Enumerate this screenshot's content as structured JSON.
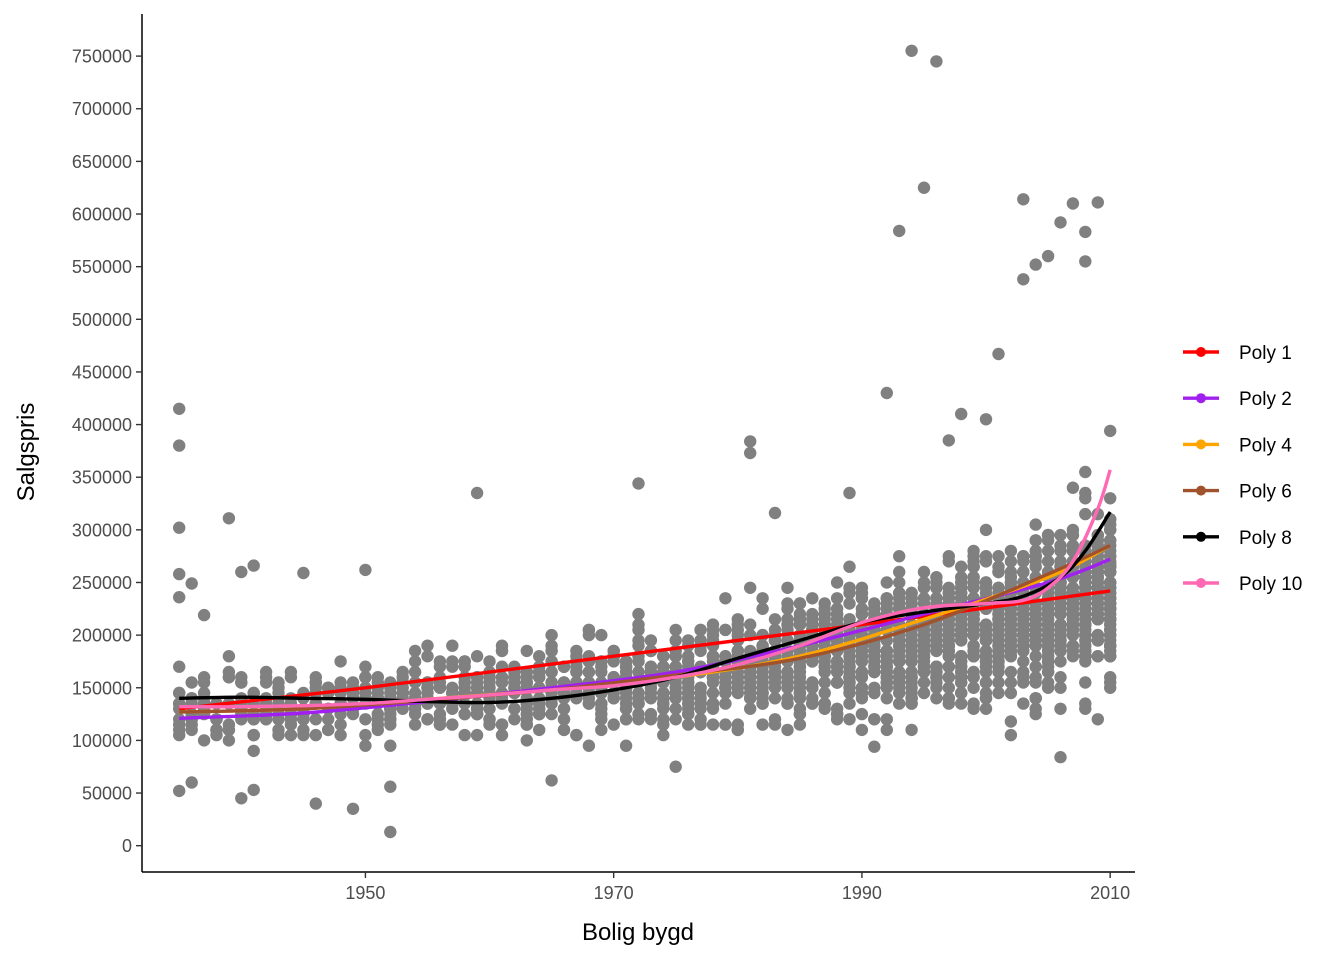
{
  "chart_data": {
    "type": "scatter",
    "title": "",
    "xlabel": "Bolig bygd",
    "ylabel": "Salgspris",
    "xlim": [
      1932,
      2012
    ],
    "ylim": [
      -25000,
      790000
    ],
    "x_ticks": [
      1950,
      1970,
      1990,
      2010
    ],
    "y_ticks": [
      0,
      50000,
      100000,
      150000,
      200000,
      250000,
      300000,
      350000,
      400000,
      450000,
      500000,
      550000,
      600000,
      650000,
      700000,
      750000
    ],
    "grid": false,
    "legend_position": "right",
    "point_color": "#808080",
    "scatter_style": {
      "x_range": [
        1935,
        2010
      ],
      "density_increases_toward": 2010,
      "typical_band_low": 70000,
      "typical_band_high": 350000
    },
    "points_notable": [
      {
        "x": 1935,
        "y": 415000
      },
      {
        "x": 1935,
        "y": 380000
      },
      {
        "x": 1935,
        "y": 302000
      },
      {
        "x": 1935,
        "y": 258000
      },
      {
        "x": 1935,
        "y": 236000
      },
      {
        "x": 1935,
        "y": 52000
      },
      {
        "x": 1936,
        "y": 249000
      },
      {
        "x": 1936,
        "y": 60000
      },
      {
        "x": 1937,
        "y": 219000
      },
      {
        "x": 1939,
        "y": 311000
      },
      {
        "x": 1940,
        "y": 260000
      },
      {
        "x": 1941,
        "y": 266000
      },
      {
        "x": 1940,
        "y": 45000
      },
      {
        "x": 1941,
        "y": 53000
      },
      {
        "x": 1945,
        "y": 259000
      },
      {
        "x": 1946,
        "y": 40000
      },
      {
        "x": 1949,
        "y": 35000
      },
      {
        "x": 1950,
        "y": 262000
      },
      {
        "x": 1952,
        "y": 13000
      },
      {
        "x": 1952,
        "y": 56000
      },
      {
        "x": 1959,
        "y": 335000
      },
      {
        "x": 1965,
        "y": 62000
      },
      {
        "x": 1972,
        "y": 344000
      },
      {
        "x": 1975,
        "y": 75000
      },
      {
        "x": 1981,
        "y": 384000
      },
      {
        "x": 1981,
        "y": 373000
      },
      {
        "x": 1983,
        "y": 316000
      },
      {
        "x": 1989,
        "y": 335000
      },
      {
        "x": 1991,
        "y": 94000
      },
      {
        "x": 1992,
        "y": 430000
      },
      {
        "x": 1993,
        "y": 584000
      },
      {
        "x": 1994,
        "y": 755000
      },
      {
        "x": 1995,
        "y": 625000
      },
      {
        "x": 1996,
        "y": 745000
      },
      {
        "x": 1997,
        "y": 385000
      },
      {
        "x": 1998,
        "y": 410000
      },
      {
        "x": 2000,
        "y": 405000
      },
      {
        "x": 2001,
        "y": 467000
      },
      {
        "x": 2002,
        "y": 118000
      },
      {
        "x": 2003,
        "y": 614000
      },
      {
        "x": 2003,
        "y": 538000
      },
      {
        "x": 2004,
        "y": 552000
      },
      {
        "x": 2005,
        "y": 560000
      },
      {
        "x": 2006,
        "y": 592000
      },
      {
        "x": 2006,
        "y": 84000
      },
      {
        "x": 2007,
        "y": 610000
      },
      {
        "x": 2008,
        "y": 583000
      },
      {
        "x": 2008,
        "y": 555000
      },
      {
        "x": 2009,
        "y": 611000
      },
      {
        "x": 2010,
        "y": 394000
      },
      {
        "x": 2010,
        "y": 268000
      }
    ],
    "series": [
      {
        "name": "Poly 1",
        "color": "#FF0000",
        "x": [
          1935,
          1950,
          1970,
          1990,
          2010
        ],
        "values": [
          130000,
          150000,
          180000,
          210000,
          242000
        ]
      },
      {
        "name": "Poly 2",
        "color": "#A020F0",
        "x": [
          1935,
          1945,
          1955,
          1965,
          1975,
          1985,
          1995,
          2005,
          2010
        ],
        "values": [
          121000,
          126000,
          137000,
          150000,
          165000,
          190000,
          220000,
          250000,
          272000
        ]
      },
      {
        "name": "Poly 4",
        "color": "#FFA500",
        "x": [
          1935,
          1945,
          1955,
          1965,
          1975,
          1985,
          1995,
          2005,
          2010
        ],
        "values": [
          127000,
          130000,
          139000,
          148000,
          160000,
          180000,
          215000,
          255000,
          285000
        ]
      },
      {
        "name": "Poly 6",
        "color": "#A0522D",
        "x": [
          1935,
          1945,
          1955,
          1965,
          1975,
          1985,
          1995,
          2005,
          2010
        ],
        "values": [
          127000,
          130000,
          138000,
          148000,
          162000,
          178000,
          210000,
          258000,
          285000
        ]
      },
      {
        "name": "Poly 8",
        "color": "#000000",
        "x": [
          1935,
          1940,
          1945,
          1950,
          1955,
          1960,
          1965,
          1970,
          1975,
          1980,
          1985,
          1990,
          1995,
          2000,
          2003,
          2006,
          2008,
          2010
        ],
        "values": [
          140000,
          141000,
          140000,
          139000,
          137000,
          136000,
          140000,
          148000,
          160000,
          178000,
          195000,
          212000,
          222000,
          230000,
          237000,
          255000,
          280000,
          317000
        ]
      },
      {
        "name": "Poly 10",
        "color": "#FF69B4",
        "x": [
          1935,
          1940,
          1945,
          1950,
          1955,
          1960,
          1965,
          1970,
          1975,
          1980,
          1985,
          1990,
          1995,
          2000,
          2003,
          2005,
          2007,
          2009,
          2010
        ],
        "values": [
          132000,
          132000,
          133000,
          135000,
          139000,
          143000,
          148000,
          152000,
          160000,
          172000,
          190000,
          212000,
          226000,
          230000,
          233000,
          245000,
          270000,
          320000,
          357000
        ]
      }
    ]
  }
}
